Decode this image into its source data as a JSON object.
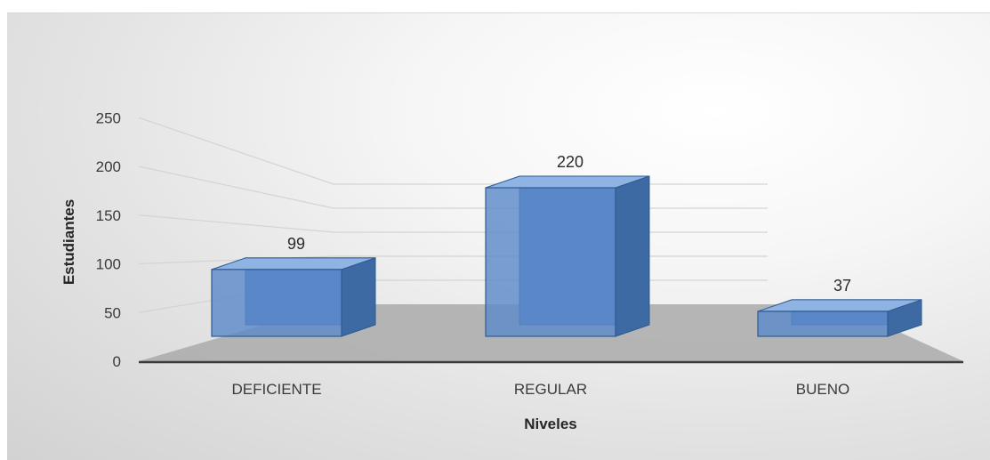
{
  "chart_data": {
    "type": "bar",
    "categories": [
      "DEFICIENTE",
      "REGULAR",
      "BUENO"
    ],
    "values": [
      99,
      220,
      37
    ],
    "title": "",
    "xlabel": "Niveles",
    "ylabel": "Estudiantes",
    "ylim": [
      0,
      250
    ],
    "yticks": [
      0,
      50,
      100,
      150,
      200,
      250
    ],
    "grid": true,
    "legend": "none",
    "bar_color": "#5b8ac9",
    "floor_color": "#aaaaaa"
  }
}
